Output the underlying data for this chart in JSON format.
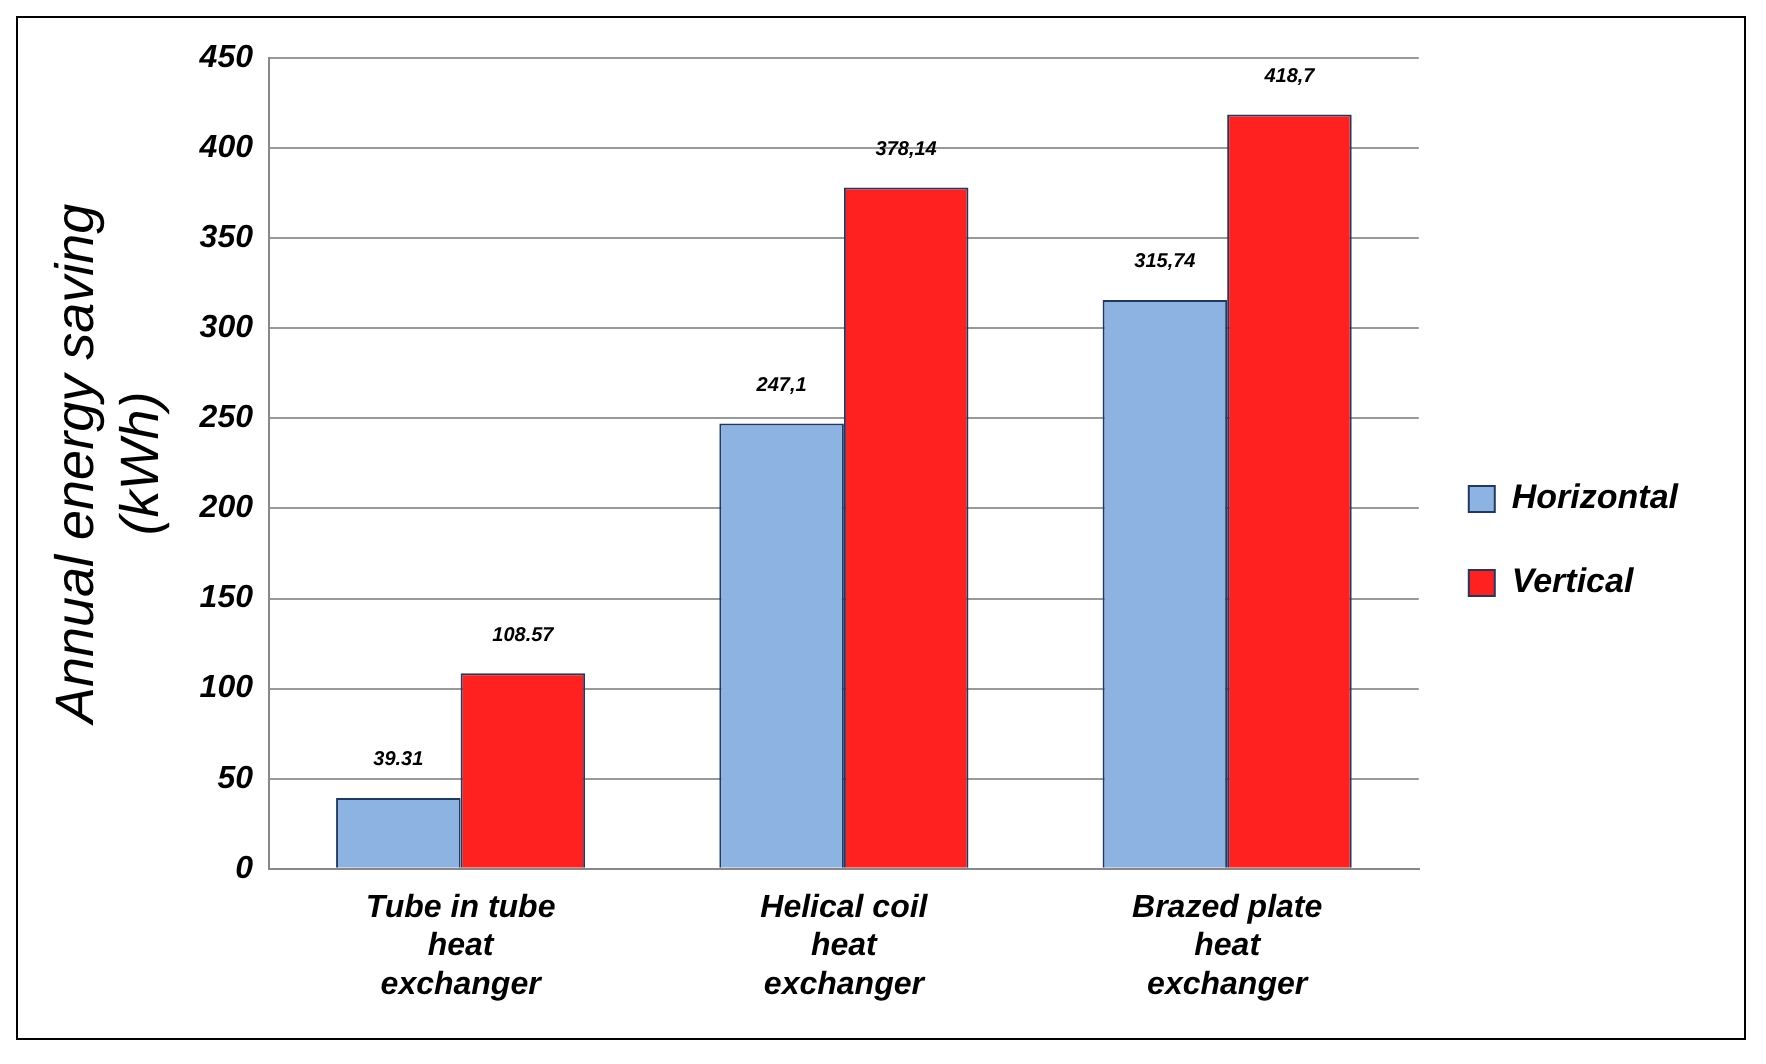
{
  "chart_data": {
    "type": "bar",
    "ylabel": "Annual energy saving (kWh)",
    "categories": [
      "Tube in tube heat exchanger",
      "Helical coil heat exchanger",
      "Brazed plate heat exchanger"
    ],
    "series": [
      {
        "name": "Horizontal",
        "color": "#8db3e2",
        "values": [
          39.31,
          247.1,
          315.74
        ],
        "value_labels": [
          "39.31",
          "247,1",
          "315,74"
        ]
      },
      {
        "name": "Vertical",
        "color": "#ff2020",
        "values": [
          108.57,
          378.14,
          418.7
        ],
        "value_labels": [
          "108.57",
          "378,14",
          "418,7"
        ]
      }
    ],
    "ylim": [
      0,
      450
    ],
    "yticks": [
      0,
      50,
      100,
      150,
      200,
      250,
      300,
      350,
      400,
      450
    ],
    "grid": "y",
    "legend": "right"
  }
}
